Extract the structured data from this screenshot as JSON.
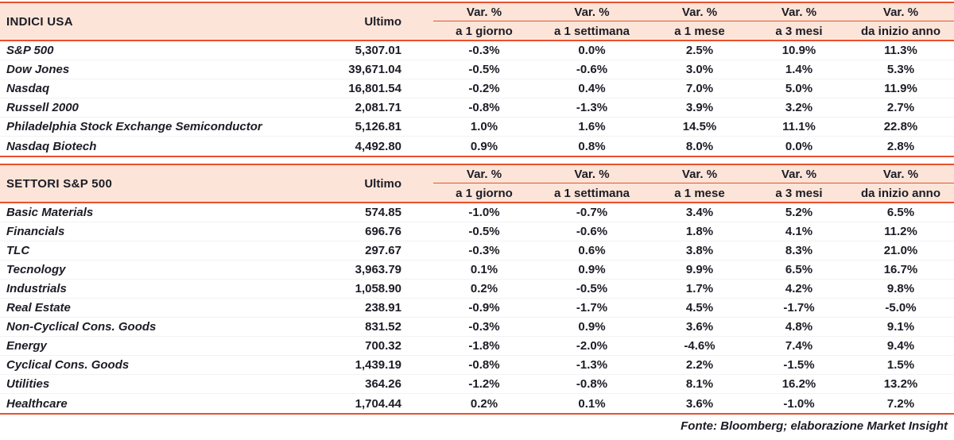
{
  "colors": {
    "accent": "#E8512E",
    "header_bg": "#FCE5D8",
    "text": "#1C1C26"
  },
  "chart_data": [
    {
      "type": "table",
      "title": "INDICI USA",
      "ultimo_label": "Ultimo",
      "var_label": "Var. %",
      "periods": [
        "a 1 giorno",
        "a 1 settimana",
        "a 1 mese",
        "a 3 mesi",
        "da inizio anno"
      ],
      "rows": [
        {
          "name": "S&P 500",
          "ultimo": "5,307.01",
          "v": [
            "-0.3%",
            "0.0%",
            "2.5%",
            "10.9%",
            "11.3%"
          ]
        },
        {
          "name": "Dow Jones",
          "ultimo": "39,671.04",
          "v": [
            "-0.5%",
            "-0.6%",
            "3.0%",
            "1.4%",
            "5.3%"
          ]
        },
        {
          "name": "Nasdaq",
          "ultimo": "16,801.54",
          "v": [
            "-0.2%",
            "0.4%",
            "7.0%",
            "5.0%",
            "11.9%"
          ]
        },
        {
          "name": "Russell 2000",
          "ultimo": "2,081.71",
          "v": [
            "-0.8%",
            "-1.3%",
            "3.9%",
            "3.2%",
            "2.7%"
          ]
        },
        {
          "name": "Philadelphia Stock Exchange Semiconductor",
          "ultimo": "5,126.81",
          "v": [
            "1.0%",
            "1.6%",
            "14.5%",
            "11.1%",
            "22.8%"
          ]
        },
        {
          "name": "Nasdaq Biotech",
          "ultimo": "4,492.80",
          "v": [
            "0.9%",
            "0.8%",
            "8.0%",
            "0.0%",
            "2.8%"
          ]
        }
      ]
    },
    {
      "type": "table",
      "title": "SETTORI S&P 500",
      "ultimo_label": "Ultimo",
      "var_label": "Var. %",
      "periods": [
        "a 1 giorno",
        "a 1 settimana",
        "a 1 mese",
        "a 3 mesi",
        "da inizio anno"
      ],
      "rows": [
        {
          "name": "Basic Materials",
          "ultimo": "574.85",
          "v": [
            "-1.0%",
            "-0.7%",
            "3.4%",
            "5.2%",
            "6.5%"
          ]
        },
        {
          "name": "Financials",
          "ultimo": "696.76",
          "v": [
            "-0.5%",
            "-0.6%",
            "1.8%",
            "4.1%",
            "11.2%"
          ]
        },
        {
          "name": "TLC",
          "ultimo": "297.67",
          "v": [
            "-0.3%",
            "0.6%",
            "3.8%",
            "8.3%",
            "21.0%"
          ]
        },
        {
          "name": "Tecnology",
          "ultimo": "3,963.79",
          "v": [
            "0.1%",
            "0.9%",
            "9.9%",
            "6.5%",
            "16.7%"
          ]
        },
        {
          "name": "Industrials",
          "ultimo": "1,058.90",
          "v": [
            "0.2%",
            "-0.5%",
            "1.7%",
            "4.2%",
            "9.8%"
          ]
        },
        {
          "name": "Real Estate",
          "ultimo": "238.91",
          "v": [
            "-0.9%",
            "-1.7%",
            "4.5%",
            "-1.7%",
            "-5.0%"
          ]
        },
        {
          "name": "Non-Cyclical Cons. Goods",
          "ultimo": "831.52",
          "v": [
            "-0.3%",
            "0.9%",
            "3.6%",
            "4.8%",
            "9.1%"
          ]
        },
        {
          "name": "Energy",
          "ultimo": "700.32",
          "v": [
            "-1.8%",
            "-2.0%",
            "-4.6%",
            "7.4%",
            "9.4%"
          ]
        },
        {
          "name": "Cyclical Cons. Goods",
          "ultimo": "1,439.19",
          "v": [
            "-0.8%",
            "-1.3%",
            "2.2%",
            "-1.5%",
            "1.5%"
          ]
        },
        {
          "name": "Utilities",
          "ultimo": "364.26",
          "v": [
            "-1.2%",
            "-0.8%",
            "8.1%",
            "16.2%",
            "13.2%"
          ]
        },
        {
          "name": "Healthcare",
          "ultimo": "1,704.44",
          "v": [
            "0.2%",
            "0.1%",
            "3.6%",
            "-1.0%",
            "7.2%"
          ]
        }
      ]
    }
  ],
  "footer": {
    "source": "Fonte: Bloomberg; elaborazione Market Insight"
  }
}
